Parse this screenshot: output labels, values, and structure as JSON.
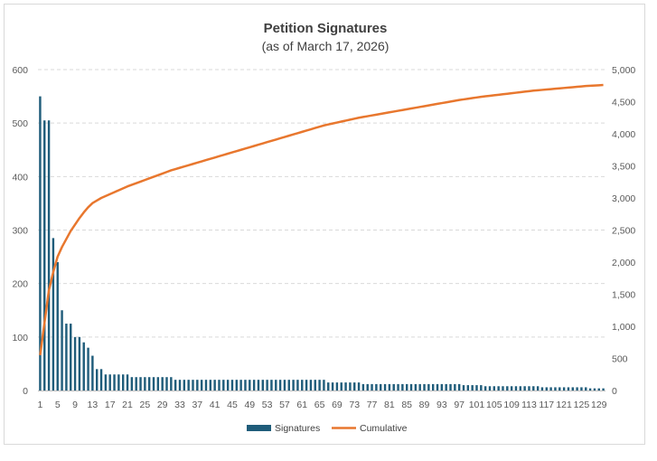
{
  "chart_data": {
    "type": "bar",
    "title": "Petition Signatures",
    "subtitle": "(as of March 17, 2026)",
    "xlabel": "",
    "ylabel": "",
    "ylim": [
      0,
      600
    ],
    "y2lim": [
      0,
      5000
    ],
    "yticks": [
      "0",
      "100",
      "200",
      "300",
      "400",
      "500",
      "600"
    ],
    "y2ticks": [
      "0",
      "500",
      "1,000",
      "1,500",
      "2,000",
      "2,500",
      "3,000",
      "3,500",
      "4,000",
      "4,500",
      "5,000"
    ],
    "grid": true,
    "legend_position": "bottom",
    "colors": {
      "bars": "#1f5c7a",
      "line": "#e8772e",
      "grid": "#d9d9d9",
      "axis": "#bfbfbf"
    },
    "categories": [
      1,
      2,
      3,
      4,
      5,
      6,
      7,
      8,
      9,
      10,
      11,
      12,
      13,
      14,
      15,
      16,
      17,
      18,
      19,
      20,
      21,
      22,
      23,
      24,
      25,
      26,
      27,
      28,
      29,
      30,
      31,
      32,
      33,
      34,
      35,
      36,
      37,
      38,
      39,
      40,
      41,
      42,
      43,
      44,
      45,
      46,
      47,
      48,
      49,
      50,
      51,
      52,
      53,
      54,
      55,
      56,
      57,
      58,
      59,
      60,
      61,
      62,
      63,
      64,
      65,
      66,
      67,
      68,
      69,
      70,
      71,
      72,
      73,
      74,
      75,
      76,
      77,
      78,
      79,
      80,
      81,
      82,
      83,
      84,
      85,
      86,
      87,
      88,
      89,
      90,
      91,
      92,
      93,
      94,
      95,
      96,
      97,
      98,
      99,
      100,
      101,
      102,
      103,
      104,
      105,
      106,
      107,
      108,
      109,
      110,
      111,
      112,
      113,
      114,
      115,
      116,
      117,
      118,
      119,
      120,
      121,
      122,
      123,
      124,
      125,
      126,
      127,
      128,
      129,
      130
    ],
    "tick_labels": [
      "1",
      "5",
      "9",
      "13",
      "17",
      "21",
      "25",
      "29",
      "33",
      "37",
      "41",
      "45",
      "49",
      "53",
      "57",
      "61",
      "65",
      "69",
      "73",
      "77",
      "81",
      "85",
      "89",
      "93",
      "97",
      "101",
      "105",
      "109",
      "113",
      "117",
      "121",
      "125",
      "129"
    ],
    "series": [
      {
        "name": "Signatures",
        "type": "bar",
        "axis": "left",
        "values": [
          550,
          505,
          505,
          285,
          240,
          150,
          125,
          125,
          100,
          100,
          90,
          80,
          65,
          40,
          40,
          30,
          30,
          30,
          30,
          30,
          30,
          25,
          25,
          25,
          25,
          25,
          25,
          25,
          25,
          25,
          25,
          20,
          20,
          20,
          20,
          20,
          20,
          20,
          20,
          20,
          20,
          20,
          20,
          20,
          20,
          20,
          20,
          20,
          20,
          20,
          20,
          20,
          20,
          20,
          20,
          20,
          20,
          20,
          20,
          20,
          20,
          20,
          20,
          20,
          20,
          20,
          15,
          15,
          15,
          15,
          15,
          15,
          15,
          15,
          12,
          12,
          12,
          12,
          12,
          12,
          12,
          12,
          12,
          12,
          12,
          12,
          12,
          12,
          12,
          12,
          12,
          12,
          12,
          12,
          12,
          12,
          12,
          10,
          10,
          10,
          10,
          10,
          8,
          8,
          8,
          8,
          8,
          8,
          8,
          8,
          8,
          8,
          8,
          8,
          8,
          6,
          6,
          6,
          6,
          6,
          6,
          6,
          6,
          6,
          6,
          6,
          4,
          4,
          4,
          4
        ]
      },
      {
        "name": "Cumulative",
        "type": "line",
        "axis": "right",
        "values": [
          550,
          1055,
          1560,
          1845,
          2085,
          2235,
          2360,
          2485,
          2585,
          2685,
          2775,
          2855,
          2920,
          2960,
          3000,
          3030,
          3060,
          3090,
          3120,
          3150,
          3180,
          3205,
          3230,
          3255,
          3280,
          3305,
          3330,
          3355,
          3380,
          3405,
          3430,
          3450,
          3470,
          3490,
          3510,
          3530,
          3550,
          3570,
          3590,
          3610,
          3630,
          3650,
          3670,
          3690,
          3710,
          3730,
          3750,
          3770,
          3790,
          3810,
          3830,
          3850,
          3870,
          3890,
          3910,
          3930,
          3950,
          3970,
          3990,
          4010,
          4030,
          4050,
          4070,
          4090,
          4110,
          4130,
          4145,
          4160,
          4175,
          4190,
          4205,
          4220,
          4235,
          4250,
          4262,
          4274,
          4286,
          4298,
          4310,
          4322,
          4334,
          4346,
          4358,
          4370,
          4382,
          4394,
          4406,
          4418,
          4430,
          4442,
          4454,
          4466,
          4478,
          4490,
          4502,
          4514,
          4526,
          4536,
          4546,
          4556,
          4566,
          4576,
          4584,
          4592,
          4600,
          4608,
          4616,
          4624,
          4632,
          4640,
          4648,
          4656,
          4664,
          4672,
          4678,
          4684,
          4690,
          4696,
          4702,
          4708,
          4714,
          4720,
          4726,
          4732,
          4738,
          4744,
          4748,
          4752,
          4756,
          4760
        ]
      }
    ]
  }
}
